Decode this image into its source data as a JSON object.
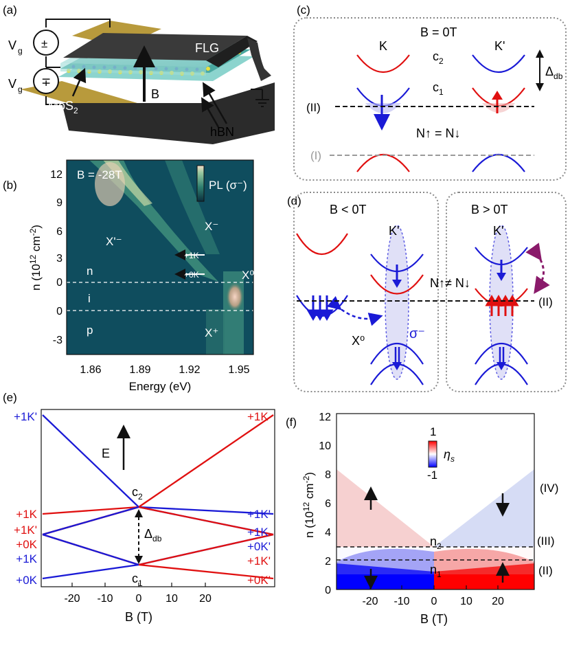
{
  "panel_labels": {
    "a": "(a)",
    "b": "(b)",
    "c": "(c)",
    "d": "(d)",
    "e": "(e)",
    "f": "(f)"
  },
  "panel_a": {
    "vg_top": "V",
    "vg_top_sub": "g",
    "vg_bottom": "V",
    "vg_bottom_sub": "g",
    "source_top": "±",
    "source_bottom": "∓",
    "flg": "FLG",
    "b_label": "B",
    "mos2": "MoS",
    "mos2_sub": "2",
    "hbn": "hBN"
  },
  "panel_b": {
    "field": "B = -28T",
    "colorbar_label": "PL (σ⁻)",
    "xlabel": "Energy (eV)",
    "ylabel_main": "n (10",
    "ylabel_exp": "12",
    "ylabel_unit": " cm",
    "ylabel_exp2": "-2",
    "ylabel_close": ")",
    "xticks": [
      "1.86",
      "1.89",
      "1.92",
      "1.95"
    ],
    "yticks": [
      "12",
      "9",
      "6",
      "3",
      "0",
      "0",
      "-3"
    ],
    "region_n": "n",
    "region_i": "i",
    "region_p": "p",
    "x_minus": "X⁻",
    "x_prime_minus": "X'⁻",
    "x_plus": "X⁺",
    "x_zero": "X⁰",
    "arrow_1k": "+1K",
    "arrow_0k": "+0K"
  },
  "panel_c": {
    "field": "B = 0T",
    "valley_k": "K",
    "valley_kp": "K'",
    "c2": "c",
    "c2_sub": "2",
    "c1": "c",
    "c1_sub": "1",
    "delta": "Δ",
    "delta_sub": "db",
    "level_II": "(II)",
    "level_I": "(I)",
    "equal": "N↑ = N↓"
  },
  "panel_d": {
    "left_field": "B < 0T",
    "right_field": "B > 0T",
    "kp_left": "K'",
    "kp_right": "K'",
    "neq": "N↑≠ N↓",
    "level_II": "(II)",
    "x0": "X⁰",
    "sigma": "σ⁻"
  },
  "panel_e": {
    "xlabel": "B (T)",
    "xticks": [
      "-20",
      "-10",
      "0",
      "10",
      "20"
    ],
    "e_label": "E",
    "c2": "c",
    "c2_sub": "2",
    "c1": "c",
    "c1_sub": "1",
    "delta": "Δ",
    "delta_sub": "db",
    "left_labels": [
      {
        "text": "+1K'",
        "color": "#1a1ad6"
      },
      {
        "text": "+1K",
        "color": "#e01010"
      },
      {
        "text": "+1K'",
        "color": "#e01010"
      },
      {
        "text": "+0K",
        "color": "#e01010"
      },
      {
        "text": "+1K",
        "color": "#1a1ad6"
      },
      {
        "text": "+0K",
        "color": "#1a1ad6"
      }
    ],
    "right_labels": [
      {
        "text": "+1K",
        "color": "#e01010"
      },
      {
        "text": "+1K'",
        "color": "#1a1ad6"
      },
      {
        "text": "+1K",
        "color": "#1a1ad6"
      },
      {
        "text": "+0K'",
        "color": "#1a1ad6"
      },
      {
        "text": "+1K'",
        "color": "#e01010"
      },
      {
        "text": "+0K'",
        "color": "#e01010"
      }
    ]
  },
  "panel_f": {
    "xlabel": "B (T)",
    "xticks": [
      "-20",
      "-10",
      "0",
      "10",
      "20"
    ],
    "yticks": [
      "0",
      "2",
      "4",
      "6",
      "8",
      "10",
      "12"
    ],
    "ylabel_main": "n (10",
    "ylabel_exp": "12",
    "ylabel_unit": " cm",
    "ylabel_exp2": "-2",
    "ylabel_close": ")",
    "cbar_max": "1",
    "cbar_min": "-1",
    "cbar_label": "η",
    "cbar_label_sub": "s",
    "n1": "n",
    "n1_sub": "1",
    "n2": "n",
    "n2_sub": "2",
    "regions": [
      "(IV)",
      "(III)",
      "(II)"
    ]
  },
  "colors": {
    "red": "#e01010",
    "blue": "#1a1ad6",
    "dashed_gray": "#9a9a9a",
    "purple": "#8a1a6a"
  }
}
